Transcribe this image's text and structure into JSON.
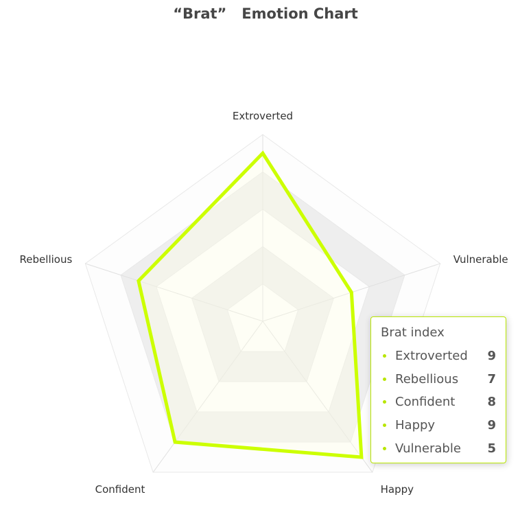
{
  "chart_data": {
    "type": "radar",
    "title": "“Brat”   Emotion Chart",
    "indicators": [
      {
        "name": "Extroverted",
        "max": 10
      },
      {
        "name": "Vulnerable",
        "max": 10
      },
      {
        "name": "Happy",
        "max": 10
      },
      {
        "name": "Confident",
        "max": 10
      },
      {
        "name": "Rebellious",
        "max": 10
      }
    ],
    "series": [
      {
        "name": "Brat index",
        "values": [
          9,
          5,
          9,
          8,
          7
        ]
      }
    ],
    "split_number": 5,
    "colors": {
      "series": "#ccff00",
      "tooltip_accent": "#b8e600"
    }
  },
  "tooltip": {
    "title": "Brat index",
    "items": [
      {
        "label": "Extroverted",
        "value": "9"
      },
      {
        "label": "Rebellious",
        "value": "7"
      },
      {
        "label": "Confident",
        "value": "8"
      },
      {
        "label": "Happy",
        "value": "9"
      },
      {
        "label": "Vulnerable",
        "value": "5"
      }
    ]
  }
}
